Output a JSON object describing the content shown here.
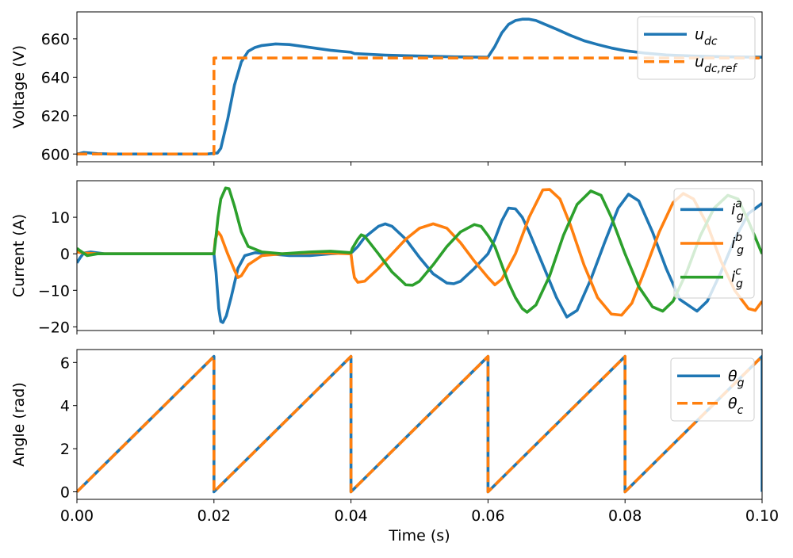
{
  "colors": {
    "blue": "#1f77b4",
    "orange": "#ff7f0e",
    "green": "#2ca02c"
  },
  "chart_data": [
    {
      "type": "line",
      "ylabel": "Voltage (V)",
      "xlabel": "",
      "xlim": [
        0,
        0.1
      ],
      "ylim": [
        596,
        674
      ],
      "yticks": [
        {
          "value": 600,
          "label": "600"
        },
        {
          "value": 620,
          "label": "620"
        },
        {
          "value": 640,
          "label": "640"
        },
        {
          "value": 660,
          "label": "660"
        }
      ],
      "xtick_labels_visible": false,
      "legend_position": "top-right",
      "series": [
        {
          "key": "udc",
          "name": "u_dc",
          "color": "#1f77b4",
          "dashed": false,
          "points": [
            [
              0,
              600
            ],
            [
              0.001,
              600.8
            ],
            [
              0.003,
              600.2
            ],
            [
              0.005,
              600
            ],
            [
              0.019,
              600
            ],
            [
              0.0205,
              600.5
            ],
            [
              0.021,
              603
            ],
            [
              0.022,
              618
            ],
            [
              0.023,
              636
            ],
            [
              0.024,
              648
            ],
            [
              0.025,
              653.5
            ],
            [
              0.026,
              655.5
            ],
            [
              0.027,
              656.5
            ],
            [
              0.029,
              657.3
            ],
            [
              0.031,
              657
            ],
            [
              0.034,
              655.5
            ],
            [
              0.037,
              654
            ],
            [
              0.04,
              653
            ],
            [
              0.0405,
              652.3
            ],
            [
              0.045,
              651.5
            ],
            [
              0.05,
              651
            ],
            [
              0.055,
              650.6
            ],
            [
              0.0598,
              650.4
            ],
            [
              0.06,
              650.5
            ],
            [
              0.061,
              656
            ],
            [
              0.062,
              663
            ],
            [
              0.063,
              667.5
            ],
            [
              0.064,
              669.5
            ],
            [
              0.065,
              670.2
            ],
            [
              0.066,
              670.2
            ],
            [
              0.067,
              669.5
            ],
            [
              0.068,
              668
            ],
            [
              0.07,
              665
            ],
            [
              0.072,
              661.8
            ],
            [
              0.074,
              659
            ],
            [
              0.076,
              657
            ],
            [
              0.078,
              655.2
            ],
            [
              0.08,
              653.8
            ],
            [
              0.083,
              652.5
            ],
            [
              0.086,
              651.6
            ],
            [
              0.09,
              651
            ],
            [
              0.095,
              650.6
            ],
            [
              0.1,
              650.4
            ]
          ]
        },
        {
          "key": "udcref",
          "name": "u_dc,ref",
          "color": "#ff7f0e",
          "dashed": true,
          "points": [
            [
              0,
              600
            ],
            [
              0.02,
              600
            ],
            [
              0.02,
              650
            ],
            [
              0.1,
              650
            ]
          ]
        }
      ]
    },
    {
      "type": "line",
      "ylabel": "Current (A)",
      "xlabel": "",
      "xlim": [
        0,
        0.1
      ],
      "ylim": [
        -21,
        20
      ],
      "yticks": [
        {
          "value": -20,
          "label": "−20"
        },
        {
          "value": -10,
          "label": "−10"
        },
        {
          "value": 0,
          "label": "0"
        },
        {
          "value": 10,
          "label": "10"
        }
      ],
      "xtick_labels_visible": false,
      "legend_position": "top-right",
      "series": [
        {
          "key": "iga",
          "name": "i_g^a",
          "color": "#1f77b4",
          "dashed": false,
          "points": [
            [
              0,
              -2.5
            ],
            [
              0.0005,
              -1
            ],
            [
              0.001,
              0.2
            ],
            [
              0.002,
              0.5
            ],
            [
              0.004,
              0
            ],
            [
              0.02,
              0
            ],
            [
              0.0203,
              -5
            ],
            [
              0.0207,
              -15
            ],
            [
              0.021,
              -18.5
            ],
            [
              0.0213,
              -18.8
            ],
            [
              0.0218,
              -17
            ],
            [
              0.0225,
              -12
            ],
            [
              0.0235,
              -4
            ],
            [
              0.0245,
              -0.5
            ],
            [
              0.026,
              0.3
            ],
            [
              0.028,
              0
            ],
            [
              0.031,
              -0.5
            ],
            [
              0.034,
              -0.5
            ],
            [
              0.037,
              0
            ],
            [
              0.04,
              0.3
            ],
            [
              0.0402,
              0.5
            ],
            [
              0.041,
              2
            ],
            [
              0.042,
              4.5
            ],
            [
              0.044,
              7.5
            ],
            [
              0.045,
              8.2
            ],
            [
              0.046,
              7.5
            ],
            [
              0.048,
              4
            ],
            [
              0.05,
              -1
            ],
            [
              0.052,
              -5.5
            ],
            [
              0.054,
              -8
            ],
            [
              0.055,
              -8.2
            ],
            [
              0.056,
              -7.5
            ],
            [
              0.058,
              -4
            ],
            [
              0.06,
              0
            ],
            [
              0.061,
              4
            ],
            [
              0.062,
              9
            ],
            [
              0.063,
              12.5
            ],
            [
              0.064,
              12.3
            ],
            [
              0.065,
              10
            ],
            [
              0.066,
              6
            ],
            [
              0.068,
              -3
            ],
            [
              0.07,
              -12
            ],
            [
              0.0715,
              -17.3
            ],
            [
              0.073,
              -15.5
            ],
            [
              0.075,
              -7
            ],
            [
              0.077,
              3
            ],
            [
              0.079,
              12.5
            ],
            [
              0.0805,
              16.3
            ],
            [
              0.082,
              14.5
            ],
            [
              0.084,
              6
            ],
            [
              0.086,
              -4
            ],
            [
              0.088,
              -12.5
            ],
            [
              0.0905,
              -15.7
            ],
            [
              0.092,
              -13
            ],
            [
              0.094,
              -5
            ],
            [
              0.096,
              4
            ],
            [
              0.098,
              11
            ],
            [
              0.1,
              13.8
            ]
          ]
        },
        {
          "key": "igb",
          "name": "i_g^b",
          "color": "#ff7f0e",
          "dashed": false,
          "points": [
            [
              0,
              0.5
            ],
            [
              0.001,
              0.2
            ],
            [
              0.003,
              0
            ],
            [
              0.02,
              0
            ],
            [
              0.0202,
              4
            ],
            [
              0.0206,
              6
            ],
            [
              0.021,
              5
            ],
            [
              0.022,
              0
            ],
            [
              0.023,
              -4.5
            ],
            [
              0.0235,
              -6.5
            ],
            [
              0.024,
              -6
            ],
            [
              0.025,
              -3
            ],
            [
              0.027,
              -0.5
            ],
            [
              0.03,
              0
            ],
            [
              0.035,
              0.3
            ],
            [
              0.04,
              0
            ],
            [
              0.0402,
              -3
            ],
            [
              0.0405,
              -6.5
            ],
            [
              0.041,
              -7.8
            ],
            [
              0.042,
              -7.5
            ],
            [
              0.044,
              -4
            ],
            [
              0.046,
              0
            ],
            [
              0.048,
              4
            ],
            [
              0.05,
              7
            ],
            [
              0.052,
              8.2
            ],
            [
              0.054,
              7
            ],
            [
              0.056,
              3
            ],
            [
              0.058,
              -2
            ],
            [
              0.06,
              -6.5
            ],
            [
              0.061,
              -8.5
            ],
            [
              0.062,
              -7
            ],
            [
              0.064,
              0
            ],
            [
              0.066,
              10
            ],
            [
              0.068,
              17.5
            ],
            [
              0.069,
              17.6
            ],
            [
              0.0705,
              15
            ],
            [
              0.072,
              8
            ],
            [
              0.074,
              -3
            ],
            [
              0.076,
              -12
            ],
            [
              0.078,
              -16.5
            ],
            [
              0.0795,
              -16.8
            ],
            [
              0.081,
              -13.5
            ],
            [
              0.083,
              -4
            ],
            [
              0.085,
              6
            ],
            [
              0.087,
              14
            ],
            [
              0.0885,
              16.5
            ],
            [
              0.09,
              15
            ],
            [
              0.092,
              8
            ],
            [
              0.094,
              -2
            ],
            [
              0.096,
              -10
            ],
            [
              0.098,
              -15
            ],
            [
              0.099,
              -15.5
            ],
            [
              0.1,
              -13
            ]
          ]
        },
        {
          "key": "igc",
          "name": "i_g^c",
          "color": "#2ca02c",
          "dashed": false,
          "points": [
            [
              0,
              1.5
            ],
            [
              0.0005,
              0.8
            ],
            [
              0.0015,
              -0.5
            ],
            [
              0.003,
              0
            ],
            [
              0.02,
              0
            ],
            [
              0.0202,
              3
            ],
            [
              0.0206,
              10
            ],
            [
              0.021,
              15
            ],
            [
              0.0217,
              18
            ],
            [
              0.0222,
              17.8
            ],
            [
              0.023,
              13
            ],
            [
              0.024,
              6
            ],
            [
              0.025,
              2
            ],
            [
              0.027,
              0.5
            ],
            [
              0.03,
              0
            ],
            [
              0.034,
              0.5
            ],
            [
              0.037,
              0.7
            ],
            [
              0.04,
              0.3
            ],
            [
              0.0402,
              1.5
            ],
            [
              0.041,
              4
            ],
            [
              0.0415,
              5.2
            ],
            [
              0.042,
              4.8
            ],
            [
              0.044,
              0
            ],
            [
              0.046,
              -5
            ],
            [
              0.048,
              -8.5
            ],
            [
              0.049,
              -8.6
            ],
            [
              0.05,
              -7.5
            ],
            [
              0.052,
              -3
            ],
            [
              0.054,
              2
            ],
            [
              0.056,
              6
            ],
            [
              0.058,
              8
            ],
            [
              0.059,
              7.5
            ],
            [
              0.06,
              5
            ],
            [
              0.061,
              2
            ],
            [
              0.062,
              -3
            ],
            [
              0.063,
              -8
            ],
            [
              0.064,
              -12
            ],
            [
              0.065,
              -15
            ],
            [
              0.0657,
              -16
            ],
            [
              0.067,
              -14
            ],
            [
              0.069,
              -6
            ],
            [
              0.071,
              5
            ],
            [
              0.073,
              13.5
            ],
            [
              0.075,
              17.2
            ],
            [
              0.0765,
              16
            ],
            [
              0.078,
              10
            ],
            [
              0.08,
              0
            ],
            [
              0.082,
              -9
            ],
            [
              0.084,
              -14.5
            ],
            [
              0.0855,
              -15.7
            ],
            [
              0.087,
              -13
            ],
            [
              0.089,
              -5
            ],
            [
              0.091,
              5
            ],
            [
              0.093,
              12.5
            ],
            [
              0.095,
              16
            ],
            [
              0.0965,
              15
            ],
            [
              0.098,
              9
            ],
            [
              0.1,
              0
            ]
          ]
        }
      ]
    },
    {
      "type": "line",
      "ylabel": "Angle (rad)",
      "xlabel": "Time (s)",
      "xlim": [
        0,
        0.1
      ],
      "ylim": [
        -0.35,
        6.6
      ],
      "yticks": [
        {
          "value": 0,
          "label": "0"
        },
        {
          "value": 2,
          "label": "2"
        },
        {
          "value": 4,
          "label": "4"
        },
        {
          "value": 6,
          "label": "6"
        }
      ],
      "xticks": [
        {
          "value": 0,
          "label": "0.00"
        },
        {
          "value": 0.02,
          "label": "0.02"
        },
        {
          "value": 0.04,
          "label": "0.04"
        },
        {
          "value": 0.06,
          "label": "0.06"
        },
        {
          "value": 0.08,
          "label": "0.08"
        },
        {
          "value": 0.1,
          "label": "0.10"
        }
      ],
      "xtick_labels_visible": true,
      "legend_position": "top-right",
      "series": [
        {
          "key": "thetag",
          "name": "θ_g",
          "color": "#1f77b4",
          "dashed": false,
          "points": [
            [
              0,
              0
            ],
            [
              0.02,
              6.28
            ],
            [
              0.02,
              0
            ],
            [
              0.04,
              6.28
            ],
            [
              0.04,
              0
            ],
            [
              0.06,
              6.28
            ],
            [
              0.06,
              0
            ],
            [
              0.08,
              6.28
            ],
            [
              0.08,
              0
            ],
            [
              0.1,
              6.28
            ],
            [
              0.1,
              0
            ]
          ]
        },
        {
          "key": "thetac",
          "name": "θ_c",
          "color": "#ff7f0e",
          "dashed": true,
          "points": [
            [
              0,
              0
            ],
            [
              0.02,
              6.28
            ],
            [
              0.02,
              0
            ],
            [
              0.04,
              6.28
            ],
            [
              0.04,
              0
            ],
            [
              0.06,
              6.28
            ],
            [
              0.06,
              0
            ],
            [
              0.08,
              6.28
            ],
            [
              0.08,
              0
            ],
            [
              0.1,
              6.28
            ]
          ]
        }
      ]
    }
  ]
}
